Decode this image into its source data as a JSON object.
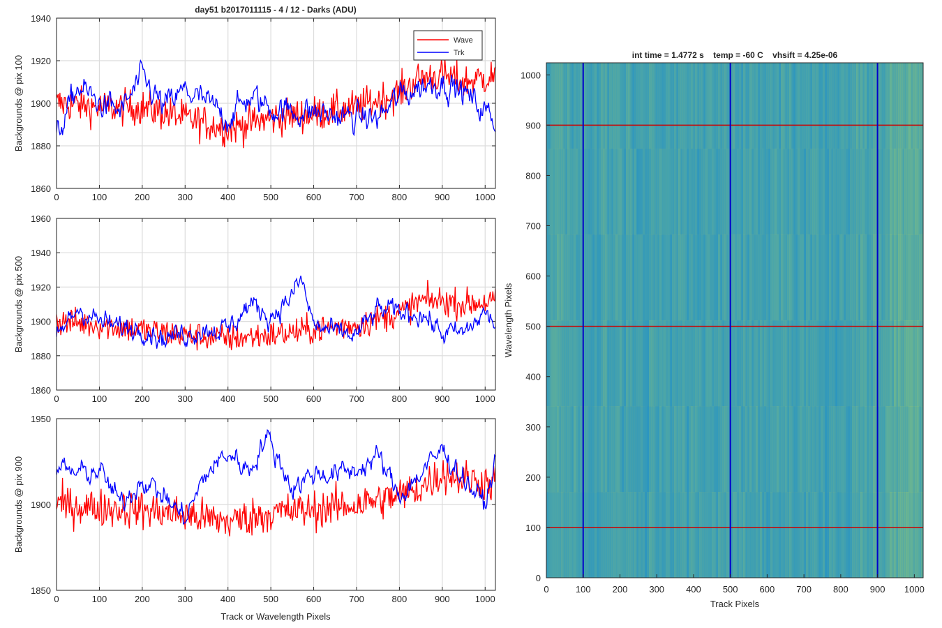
{
  "chart_data": [
    {
      "type": "line",
      "title": "day51 b2017011115 - 4 / 12 - Darks (ADU)",
      "ylabel": "Backgrounds @ pix 100",
      "xlabel": "",
      "xlim": [
        0,
        1024
      ],
      "ylim": [
        1860,
        1940
      ],
      "xticks": [
        0,
        100,
        200,
        300,
        400,
        500,
        600,
        700,
        800,
        900,
        1000
      ],
      "yticks": [
        1860,
        1880,
        1900,
        1920,
        1940
      ],
      "grid": true,
      "legend": {
        "placement": "top-right",
        "entries": [
          "Wave",
          "Trk"
        ]
      },
      "series": [
        {
          "name": "Wave",
          "color": "#ff0000",
          "x": [
            0,
            100,
            200,
            300,
            400,
            500,
            600,
            700,
            800,
            850,
            900,
            950,
            1024
          ],
          "y": [
            1900,
            1898,
            1898,
            1893,
            1888,
            1893,
            1895,
            1898,
            1905,
            1912,
            1913,
            1910,
            1913
          ]
        },
        {
          "name": "Trk",
          "color": "#0000ff",
          "x": [
            0,
            50,
            100,
            150,
            200,
            250,
            300,
            350,
            400,
            450,
            500,
            550,
            600,
            650,
            700,
            750,
            800,
            850,
            900,
            950,
            1024
          ],
          "y": [
            1884,
            1908,
            1900,
            1896,
            1912,
            1898,
            1906,
            1900,
            1893,
            1903,
            1898,
            1896,
            1896,
            1894,
            1893,
            1893,
            1903,
            1908,
            1910,
            1905,
            1892
          ]
        }
      ]
    },
    {
      "type": "line",
      "title": "",
      "ylabel": "Backgrounds @ pix 500",
      "xlabel": "",
      "xlim": [
        0,
        1024
      ],
      "ylim": [
        1860,
        1960
      ],
      "xticks": [
        0,
        100,
        200,
        300,
        400,
        500,
        600,
        700,
        800,
        900,
        1000
      ],
      "yticks": [
        1860,
        1880,
        1900,
        1920,
        1940,
        1960
      ],
      "grid": true,
      "series": [
        {
          "name": "Wave",
          "color": "#ff0000",
          "x": [
            0,
            100,
            200,
            300,
            400,
            500,
            600,
            700,
            800,
            850,
            900,
            950,
            1024
          ],
          "y": [
            1900,
            1898,
            1895,
            1892,
            1890,
            1892,
            1895,
            1898,
            1905,
            1912,
            1912,
            1910,
            1912
          ]
        },
        {
          "name": "Trk",
          "color": "#0000ff",
          "x": [
            0,
            50,
            100,
            150,
            200,
            250,
            300,
            350,
            400,
            450,
            500,
            550,
            570,
            600,
            650,
            700,
            750,
            800,
            850,
            900,
            950,
            1000,
            1024
          ],
          "y": [
            1890,
            1908,
            1900,
            1896,
            1897,
            1890,
            1893,
            1896,
            1895,
            1910,
            1903,
            1915,
            1925,
            1898,
            1893,
            1892,
            1907,
            1905,
            1905,
            1893,
            1893,
            1905,
            1898
          ]
        }
      ]
    },
    {
      "type": "line",
      "title": "",
      "ylabel": "Backgrounds @ pix 900",
      "xlabel": "Track or Wavelength Pixels",
      "xlim": [
        0,
        1024
      ],
      "ylim": [
        1850,
        1950
      ],
      "xticks": [
        0,
        100,
        200,
        300,
        400,
        500,
        600,
        700,
        800,
        900,
        1000
      ],
      "yticks": [
        1850,
        1900,
        1950
      ],
      "grid": true,
      "series": [
        {
          "name": "Wave",
          "color": "#ff0000",
          "x": [
            0,
            100,
            200,
            300,
            400,
            500,
            600,
            700,
            800,
            850,
            900,
            950,
            1024
          ],
          "y": [
            1900,
            1898,
            1897,
            1894,
            1890,
            1895,
            1897,
            1900,
            1905,
            1910,
            1918,
            1915,
            1912
          ]
        },
        {
          "name": "Trk",
          "color": "#0000ff",
          "x": [
            0,
            50,
            100,
            150,
            200,
            250,
            300,
            350,
            400,
            450,
            490,
            550,
            600,
            650,
            700,
            750,
            800,
            850,
            900,
            950,
            1000,
            1024
          ],
          "y": [
            1922,
            1918,
            1920,
            1900,
            1915,
            1905,
            1892,
            1918,
            1930,
            1920,
            1940,
            1910,
            1918,
            1918,
            1920,
            1928,
            1905,
            1918,
            1932,
            1915,
            1900,
            1925
          ]
        }
      ]
    },
    {
      "type": "heatmap",
      "title": "int time = 1.4772 s    temp = -60 C    vhsift = 4.25e-06",
      "xlabel": "Track Pixels",
      "ylabel": "Wavelength Pixels",
      "xlim": [
        0,
        1024
      ],
      "ylim": [
        0,
        1024
      ],
      "xticks": [
        0,
        100,
        200,
        300,
        400,
        500,
        600,
        700,
        800,
        900,
        1000
      ],
      "yticks": [
        0,
        100,
        200,
        300,
        400,
        500,
        600,
        700,
        800,
        900,
        1000
      ],
      "colormap": "parula",
      "vertical_markers": {
        "color": "#0000cc",
        "x": [
          100,
          500,
          900
        ]
      },
      "horizontal_markers": {
        "color": "#cc0000",
        "y": [
          100,
          500,
          900
        ]
      }
    }
  ]
}
